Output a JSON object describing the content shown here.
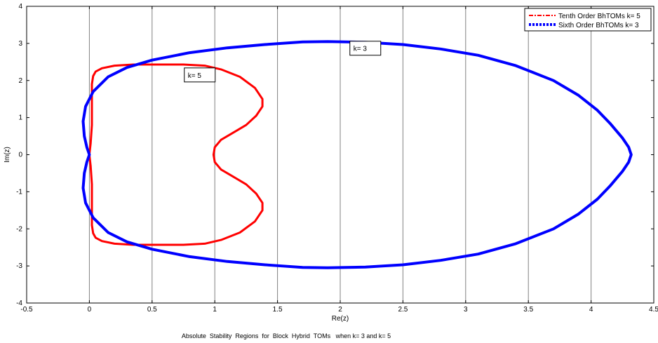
{
  "chart_data": {
    "type": "line",
    "xlabel": "Re(z)",
    "ylabel": "Im(z)",
    "caption": "Absolute  Stability  Regions  for  Block  Hybrid  TOMs   when k= 3 and k= 5",
    "xlim": [
      -0.5,
      4.5
    ],
    "ylim": [
      -4,
      4
    ],
    "xticks": [
      -0.5,
      0,
      0.5,
      1,
      1.5,
      2,
      2.5,
      3,
      3.5,
      4,
      4.5
    ],
    "xtick_labels": [
      "-0.5",
      "0",
      "0.5",
      "1",
      "1.5",
      "2",
      "2.5",
      "3",
      "3.5",
      "4",
      "4.5"
    ],
    "yticks": [
      -4,
      -3,
      -2,
      -1,
      0,
      1,
      2,
      3,
      4
    ],
    "ytick_labels": [
      "-4",
      "-3",
      "-2",
      "-1",
      "0",
      "1",
      "2",
      "3",
      "4"
    ],
    "grid": "vertical",
    "legend_position": "top-right",
    "series": [
      {
        "name": "Tenth Order BhTOMs k= 5",
        "color": "#ff0000",
        "style": "dash-dot",
        "x": [
          0.0,
          0.01,
          0.02,
          0.02,
          0.02,
          0.03,
          0.05,
          0.1,
          0.2,
          0.35,
          0.55,
          0.75,
          0.92,
          1.05,
          1.2,
          1.32,
          1.38,
          1.38,
          1.33,
          1.25,
          1.15,
          1.05,
          1.0,
          0.99,
          1.0,
          1.05,
          1.15,
          1.25,
          1.33,
          1.38,
          1.38,
          1.32,
          1.2,
          1.05,
          0.92,
          0.75,
          0.55,
          0.35,
          0.2,
          0.1,
          0.05,
          0.03,
          0.02,
          0.02,
          0.02,
          0.01,
          0.0
        ],
        "y": [
          0.0,
          0.3,
          0.8,
          1.4,
          1.9,
          2.12,
          2.24,
          2.33,
          2.4,
          2.43,
          2.43,
          2.43,
          2.4,
          2.3,
          2.1,
          1.8,
          1.5,
          1.3,
          1.05,
          0.8,
          0.6,
          0.4,
          0.2,
          0.0,
          -0.2,
          -0.4,
          -0.6,
          -0.8,
          -1.05,
          -1.3,
          -1.5,
          -1.8,
          -2.1,
          -2.3,
          -2.4,
          -2.43,
          -2.43,
          -2.43,
          -2.4,
          -2.33,
          -2.24,
          -2.12,
          -1.9,
          -1.4,
          -0.8,
          -0.3,
          0.0
        ]
      },
      {
        "name": "Sixth Order BhTOMs k= 3",
        "color": "#0000ff",
        "style": "dotted",
        "x": [
          0.0,
          -0.02,
          -0.04,
          -0.05,
          -0.03,
          0.03,
          0.15,
          0.3,
          0.5,
          0.8,
          1.1,
          1.4,
          1.7,
          1.9,
          2.2,
          2.5,
          2.8,
          3.1,
          3.4,
          3.7,
          3.9,
          4.05,
          4.15,
          4.25,
          4.3,
          4.32,
          4.3,
          4.25,
          4.15,
          4.05,
          3.9,
          3.7,
          3.4,
          3.1,
          2.8,
          2.5,
          2.2,
          1.9,
          1.7,
          1.4,
          1.1,
          0.8,
          0.5,
          0.3,
          0.15,
          0.03,
          -0.03,
          -0.05,
          -0.04,
          -0.02,
          0.0
        ],
        "y": [
          0.0,
          0.2,
          0.5,
          0.9,
          1.3,
          1.7,
          2.1,
          2.35,
          2.55,
          2.75,
          2.88,
          2.97,
          3.04,
          3.05,
          3.03,
          2.97,
          2.85,
          2.68,
          2.4,
          2.0,
          1.6,
          1.2,
          0.85,
          0.45,
          0.2,
          0.0,
          -0.2,
          -0.45,
          -0.85,
          -1.2,
          -1.6,
          -2.0,
          -2.4,
          -2.68,
          -2.85,
          -2.97,
          -3.03,
          -3.05,
          -3.04,
          -2.97,
          -2.88,
          -2.75,
          -2.55,
          -2.35,
          -2.1,
          -1.7,
          -1.3,
          -0.9,
          -0.5,
          -0.2,
          0.0
        ]
      }
    ],
    "annotations": [
      {
        "text": "k= 5",
        "x": 0.88,
        "y": 2.15
      },
      {
        "text": "k= 3",
        "x": 2.2,
        "y": 2.87
      }
    ]
  }
}
